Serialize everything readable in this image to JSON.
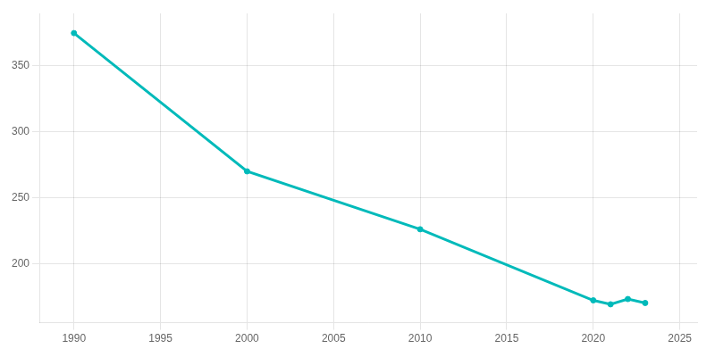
{
  "chart_data": {
    "type": "line",
    "x": [
      1990,
      2000,
      2010,
      2020,
      2021,
      2022,
      2023
    ],
    "values": [
      375,
      270,
      226,
      172,
      169,
      173,
      170
    ],
    "color": "#00BABA",
    "marker": "circle",
    "line_style": "solid",
    "xlim": [
      1988,
      2026
    ],
    "ylim": [
      155,
      390
    ],
    "xticks": [
      1990,
      1995,
      2000,
      2005,
      2010,
      2015,
      2020,
      2025
    ],
    "yticks": [
      200,
      250,
      300,
      350
    ],
    "grid": true
  }
}
